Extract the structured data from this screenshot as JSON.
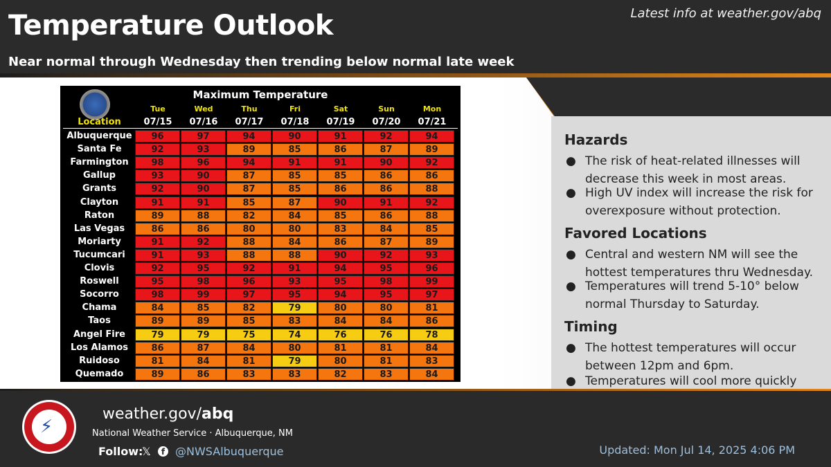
{
  "header": {
    "title": "Temperature Outlook",
    "subtitle": "Near normal through Wednesday then trending below normal late week",
    "latest": "Latest info at weather.gov/abq"
  },
  "table": {
    "title": "Maximum Temperature",
    "location_header": "Location",
    "days": [
      "Tue",
      "Wed",
      "Thu",
      "Fri",
      "Sat",
      "Sun",
      "Mon"
    ],
    "dates": [
      "07/15",
      "07/16",
      "07/17",
      "07/18",
      "07/19",
      "07/20",
      "07/21"
    ],
    "rows": [
      {
        "loc": "Albuquerque",
        "vals": [
          96,
          97,
          94,
          90,
          91,
          92,
          94
        ],
        "colors": [
          "r",
          "r",
          "r",
          "r",
          "r",
          "r",
          "r"
        ]
      },
      {
        "loc": "Santa Fe",
        "vals": [
          92,
          93,
          89,
          85,
          86,
          87,
          89
        ],
        "colors": [
          "r",
          "r",
          "o",
          "o",
          "o",
          "o",
          "o"
        ]
      },
      {
        "loc": "Farmington",
        "vals": [
          98,
          96,
          94,
          91,
          91,
          90,
          92
        ],
        "colors": [
          "r",
          "r",
          "r",
          "r",
          "r",
          "r",
          "r"
        ]
      },
      {
        "loc": "Gallup",
        "vals": [
          93,
          90,
          87,
          85,
          85,
          86,
          86
        ],
        "colors": [
          "r",
          "r",
          "o",
          "o",
          "o",
          "o",
          "o"
        ]
      },
      {
        "loc": "Grants",
        "vals": [
          92,
          90,
          87,
          85,
          86,
          86,
          88
        ],
        "colors": [
          "r",
          "r",
          "o",
          "o",
          "o",
          "o",
          "o"
        ]
      },
      {
        "loc": "Clayton",
        "vals": [
          91,
          91,
          85,
          87,
          90,
          91,
          92
        ],
        "colors": [
          "r",
          "r",
          "o",
          "o",
          "r",
          "r",
          "r"
        ]
      },
      {
        "loc": "Raton",
        "vals": [
          89,
          88,
          82,
          84,
          85,
          86,
          88
        ],
        "colors": [
          "o",
          "o",
          "o",
          "o",
          "o",
          "o",
          "o"
        ]
      },
      {
        "loc": "Las Vegas",
        "vals": [
          86,
          86,
          80,
          80,
          83,
          84,
          85
        ],
        "colors": [
          "o",
          "o",
          "o",
          "o",
          "o",
          "o",
          "o"
        ]
      },
      {
        "loc": "Moriarty",
        "vals": [
          91,
          92,
          88,
          84,
          86,
          87,
          89
        ],
        "colors": [
          "r",
          "r",
          "o",
          "o",
          "o",
          "o",
          "o"
        ]
      },
      {
        "loc": "Tucumcari",
        "vals": [
          91,
          93,
          88,
          88,
          90,
          92,
          93
        ],
        "colors": [
          "r",
          "r",
          "o",
          "o",
          "r",
          "r",
          "r"
        ]
      },
      {
        "loc": "Clovis",
        "vals": [
          92,
          95,
          92,
          91,
          94,
          95,
          96
        ],
        "colors": [
          "r",
          "r",
          "r",
          "r",
          "r",
          "r",
          "r"
        ]
      },
      {
        "loc": "Roswell",
        "vals": [
          95,
          98,
          96,
          93,
          95,
          98,
          99
        ],
        "colors": [
          "r",
          "r",
          "r",
          "r",
          "r",
          "r",
          "r"
        ]
      },
      {
        "loc": "Socorro",
        "vals": [
          98,
          99,
          97,
          95,
          94,
          95,
          97
        ],
        "colors": [
          "r",
          "r",
          "r",
          "r",
          "r",
          "r",
          "r"
        ]
      },
      {
        "loc": "Chama",
        "vals": [
          84,
          85,
          82,
          79,
          80,
          80,
          81
        ],
        "colors": [
          "o",
          "o",
          "o",
          "y",
          "o",
          "o",
          "o"
        ]
      },
      {
        "loc": "Taos",
        "vals": [
          89,
          89,
          85,
          83,
          84,
          84,
          86
        ],
        "colors": [
          "o",
          "o",
          "o",
          "o",
          "o",
          "o",
          "o"
        ]
      },
      {
        "loc": "Angel Fire",
        "vals": [
          79,
          79,
          75,
          74,
          76,
          76,
          78
        ],
        "colors": [
          "y",
          "y",
          "y",
          "y",
          "y",
          "y",
          "y"
        ]
      },
      {
        "loc": "Los Alamos",
        "vals": [
          86,
          87,
          84,
          80,
          81,
          81,
          84
        ],
        "colors": [
          "o",
          "o",
          "o",
          "o",
          "o",
          "o",
          "o"
        ]
      },
      {
        "loc": "Ruidoso",
        "vals": [
          81,
          84,
          81,
          79,
          80,
          81,
          83
        ],
        "colors": [
          "o",
          "o",
          "o",
          "y",
          "o",
          "o",
          "o"
        ]
      },
      {
        "loc": "Quemado",
        "vals": [
          89,
          86,
          83,
          83,
          82,
          83,
          84
        ],
        "colors": [
          "o",
          "o",
          "o",
          "o",
          "o",
          "o",
          "o"
        ]
      }
    ]
  },
  "sections": {
    "hazards": {
      "heading": "Hazards",
      "bullets": [
        "The risk of heat-related illnesses will decrease this week in most areas.",
        "High UV index will increase the risk for overexposure without protection."
      ]
    },
    "favored": {
      "heading": "Favored Locations",
      "bullets": [
        "Central and western NM will see the hottest temperatures thru Wednesday.",
        "Temperatures will trend 5-10° below normal Thursday to Saturday."
      ]
    },
    "timing": {
      "heading": "Timing",
      "bullets": [
        "The hottest temperatures will occur between 12pm and 6pm.",
        "Temperatures will cool more quickly where storms produce rainfall."
      ]
    }
  },
  "footer": {
    "site_prefix": "weather.gov/",
    "site_bold": "abq",
    "org": "National Weather Service · Albuquerque, NM",
    "follow": "Follow:",
    "x_icon": "𝕏",
    "fb_icon": "f",
    "handle": "@NWSAlbuquerque",
    "updated": "Updated: Mon Jul 14, 2025 4:06 PM"
  },
  "colors": {
    "red": "#e8151a",
    "orange": "#f5750f",
    "yellow": "#f6cd12",
    "accent": "#e2861c"
  }
}
